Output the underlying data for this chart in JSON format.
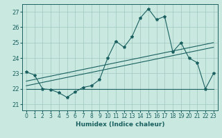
{
  "bg_color": "#c8e8e0",
  "grid_color": "#a0c8c0",
  "line_color": "#1a6060",
  "xlabel": "Humidex (Indice chaleur)",
  "xlim": [
    -0.5,
    23.5
  ],
  "ylim": [
    20.6,
    27.5
  ],
  "yticks": [
    21,
    22,
    23,
    24,
    25,
    26,
    27
  ],
  "xticks": [
    0,
    1,
    2,
    3,
    4,
    5,
    6,
    7,
    8,
    9,
    10,
    11,
    12,
    13,
    14,
    15,
    16,
    17,
    18,
    19,
    20,
    21,
    22,
    23
  ],
  "main_x": [
    0,
    1,
    2,
    3,
    4,
    5,
    6,
    7,
    8,
    9,
    10,
    11,
    12,
    13,
    14,
    15,
    16,
    17,
    18,
    19,
    20,
    21,
    22,
    23
  ],
  "main_y": [
    23.1,
    22.9,
    22.0,
    21.95,
    21.75,
    21.45,
    21.8,
    22.1,
    22.2,
    22.6,
    24.0,
    25.1,
    24.7,
    25.4,
    26.6,
    27.2,
    26.5,
    26.7,
    24.4,
    25.0,
    24.0,
    23.7,
    22.0,
    23.0
  ],
  "flat_line_x": [
    0,
    23
  ],
  "flat_line_y": [
    22.0,
    22.0
  ],
  "trend1_x": [
    0,
    23
  ],
  "trend1_y": [
    22.5,
    25.0
  ],
  "trend2_x": [
    0,
    23
  ],
  "trend2_y": [
    22.2,
    24.7
  ]
}
